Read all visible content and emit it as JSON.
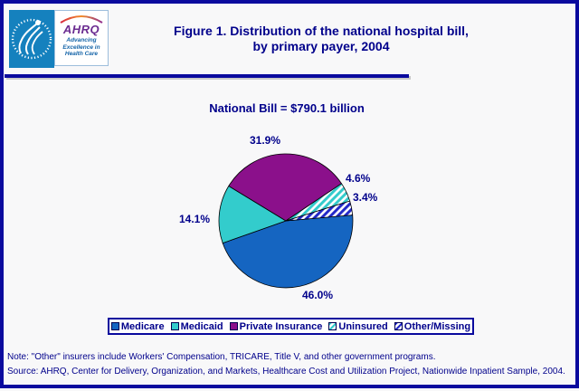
{
  "logo": {
    "ahrq": "AHRQ",
    "tagline": [
      "Advancing",
      "Excellence in",
      "Health Care"
    ]
  },
  "title": {
    "line1": "Figure 1. Distribution of the national hospital bill,",
    "line2": "by primary payer, 2004"
  },
  "chart_data": {
    "type": "pie",
    "title": "Figure 1. Distribution of the national hospital bill, by primary payer, 2004",
    "subtitle": "National Bill = $790.1 billion",
    "total_label": "National Bill = $790.1 billion",
    "start_angle_deg": -5,
    "angle_reference": "screen degrees clockwise from 3 o'clock",
    "legend_position": "bottom",
    "slices": [
      {
        "label": "Medicare",
        "value": 46.0,
        "display": "46.0%",
        "color": "#1565C1",
        "pattern": "solid"
      },
      {
        "label": "Medicaid",
        "value": 14.1,
        "display": "14.1%",
        "color": "#33CCCC",
        "pattern": "solid"
      },
      {
        "label": "Private Insurance",
        "value": 31.9,
        "display": "31.9%",
        "color": "#8B108B",
        "pattern": "solid"
      },
      {
        "label": "Uninsured",
        "value": 4.6,
        "display": "4.6%",
        "color": "#33CCCC",
        "pattern": "diagonal-stripes-on-white"
      },
      {
        "label": "Other/Missing",
        "value": 3.4,
        "display": "3.4%",
        "color": "#2228C8",
        "pattern": "diagonal-stripes-on-white"
      }
    ]
  },
  "notes": {
    "note": "Note: \"Other\" insurers include Workers' Compensation, TRICARE, Title V, and other government programs.",
    "source": "Source: AHRQ, Center for Delivery, Organization, and Markets, Healthcare Cost and Utilization Project, Nationwide Inpatient Sample, 2004."
  },
  "colors": {
    "navy_text": "#00008B",
    "border_navy": "#0A0A9E",
    "hhs_blue": "#1581BE",
    "ahrq_purple": "#6B2C91",
    "tagline_blue": "#1464A8",
    "background": "#F8F8F9"
  }
}
